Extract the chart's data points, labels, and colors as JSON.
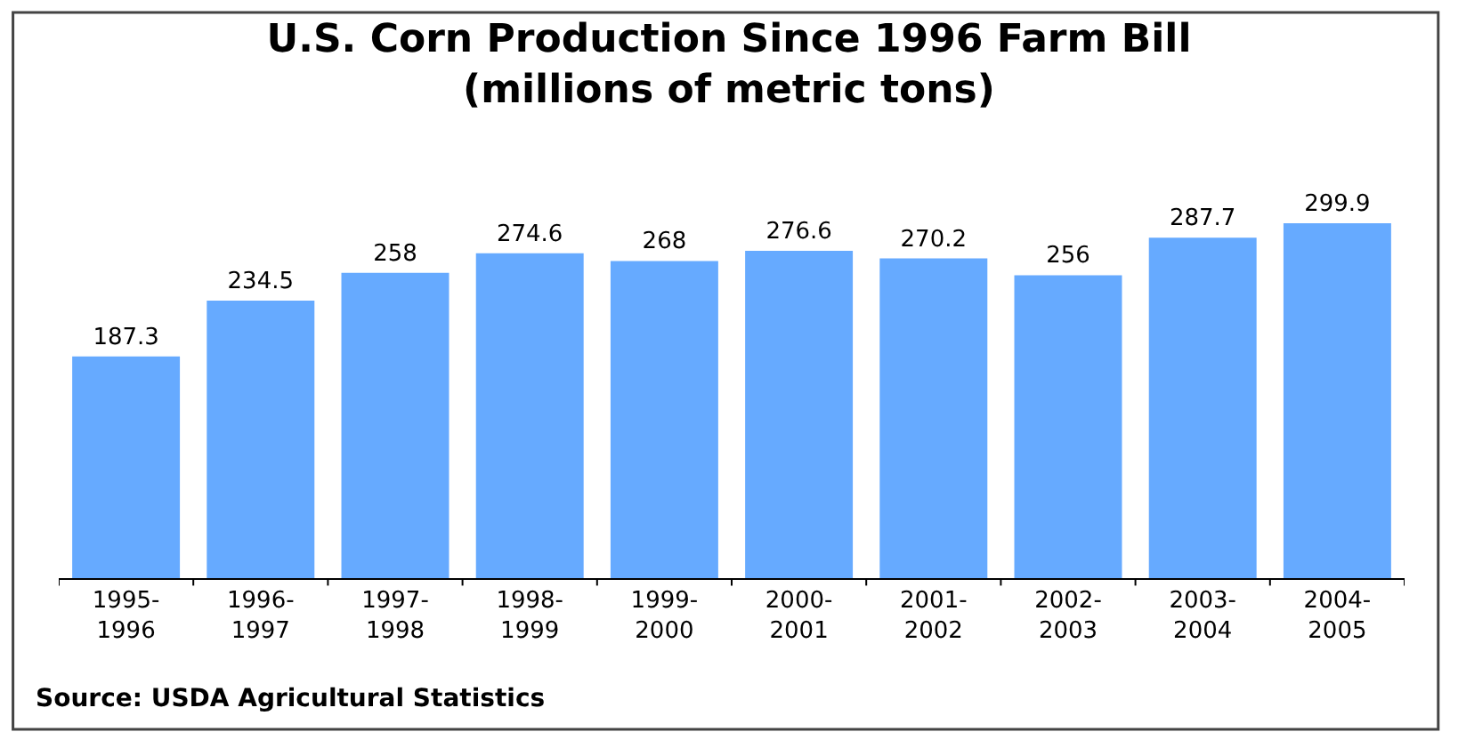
{
  "chart_data": {
    "type": "bar",
    "title": "U.S. Corn Production Since 1996 Farm Bill\n(millions of metric tons)",
    "categories": [
      "1995-1996",
      "1996-1997",
      "1997-1998",
      "1998-1999",
      "1999-2000",
      "2000-2001",
      "2001-2002",
      "2002-2003",
      "2003-2004",
      "2004-2005"
    ],
    "values": [
      187.3,
      234.5,
      258,
      274.6,
      268,
      276.6,
      270.2,
      256,
      287.7,
      299.9
    ],
    "color": "#66aaff",
    "data_labels": true,
    "legend": false,
    "annotations": [
      "Source: USDA Agricultural Statistics"
    ]
  }
}
